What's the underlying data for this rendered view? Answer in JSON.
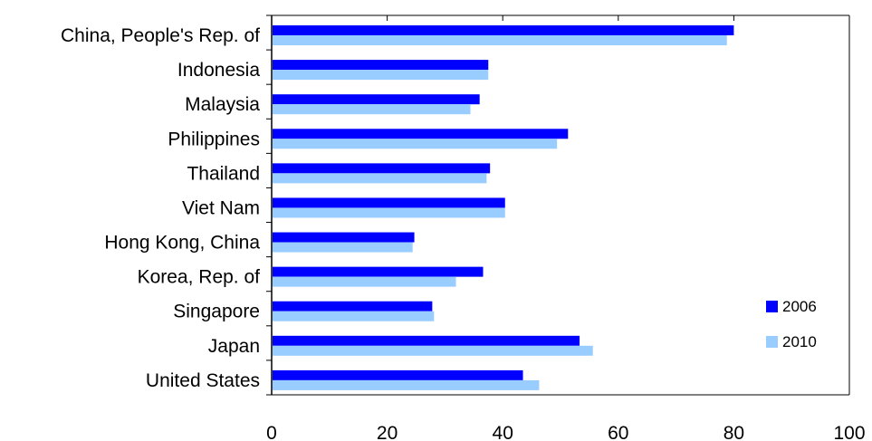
{
  "chart_data": {
    "type": "bar",
    "orientation": "horizontal",
    "categories": [
      "China, People's Rep. of",
      "Indonesia",
      "Malaysia",
      "Philippines",
      "Thailand",
      "Viet Nam",
      "Hong Kong, China",
      "Korea, Rep. of",
      "Singapore",
      "Japan",
      "United States"
    ],
    "series": [
      {
        "name": "2006",
        "color": "#0000ff",
        "values": [
          80,
          37.5,
          36,
          51.3,
          37.8,
          40.4,
          24.7,
          36.6,
          27.8,
          53.3,
          43.5
        ]
      },
      {
        "name": "2010",
        "color": "#99ccff",
        "values": [
          78.8,
          37.5,
          34.4,
          49.4,
          37.2,
          40.4,
          24.4,
          31.9,
          28.1,
          55.6,
          46.3
        ]
      }
    ],
    "xticks": [
      "0",
      "20",
      "40",
      "60",
      "80",
      "100"
    ],
    "xlim": [
      0,
      100
    ],
    "title": "",
    "xlabel": "",
    "ylabel": "",
    "grid": false,
    "legend_position": "bottom-right"
  }
}
